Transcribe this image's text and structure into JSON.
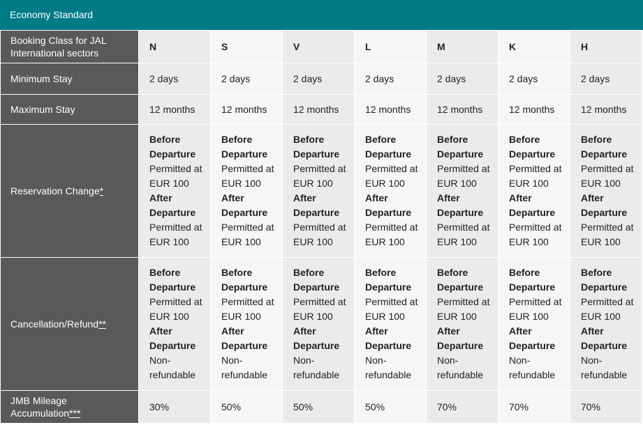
{
  "header": {
    "title": "Economy Standard"
  },
  "table": {
    "rows": [
      {
        "label": "Booking Class for JAL International sectors",
        "cells": [
          "N",
          "S",
          "V",
          "L",
          "M",
          "K",
          "H"
        ]
      },
      {
        "label": "Minimum Stay",
        "cells": [
          "2 days",
          "2 days",
          "2 days",
          "2 days",
          "2 days",
          "2 days",
          "2 days"
        ]
      },
      {
        "label": "Maximum Stay",
        "cells": [
          "12 months",
          "12 months",
          "12 months",
          "12 months",
          "12 months",
          "12 months",
          "12 months"
        ]
      },
      {
        "label": "Reservation Change",
        "note": "*",
        "cells": [
          {
            "before_label": "Before Departure",
            "before_value": "Permitted at EUR 100",
            "after_label": "After Departure",
            "after_value": "Permitted at EUR 100"
          },
          {
            "before_label": "Before Departure",
            "before_value": "Permitted at EUR 100",
            "after_label": "After Departure",
            "after_value": "Permitted at EUR 100"
          },
          {
            "before_label": "Before Departure",
            "before_value": "Permitted at EUR 100",
            "after_label": "After Departure",
            "after_value": "Permitted at EUR 100"
          },
          {
            "before_label": "Before Departure",
            "before_value": "Permitted at EUR 100",
            "after_label": "After Departure",
            "after_value": "Permitted at EUR 100"
          },
          {
            "before_label": "Before Departure",
            "before_value": "Permitted at EUR 100",
            "after_label": "After Departure",
            "after_value": "Permitted at EUR 100"
          },
          {
            "before_label": "Before Departure",
            "before_value": "Permitted at EUR 100",
            "after_label": "After Departure",
            "after_value": "Permitted at EUR 100"
          },
          {
            "before_label": "Before Departure",
            "before_value": "Permitted at EUR 100",
            "after_label": "After Departure",
            "after_value": "Permitted at EUR 100"
          }
        ]
      },
      {
        "label": "Cancellation/Refund",
        "note": "**",
        "cells": [
          {
            "before_label": "Before Departure",
            "before_value": "Permitted at EUR 100",
            "after_label": "After Departure",
            "after_value": "Non-refundable"
          },
          {
            "before_label": "Before Departure",
            "before_value": "Permitted at EUR 100",
            "after_label": "After Departure",
            "after_value": "Non-refundable"
          },
          {
            "before_label": "Before Departure",
            "before_value": "Permitted at EUR 100",
            "after_label": "After Departure",
            "after_value": "Non-refundable"
          },
          {
            "before_label": "Before Departure",
            "before_value": "Permitted at EUR 100",
            "after_label": "After Departure",
            "after_value": "Non-refundable"
          },
          {
            "before_label": "Before Departure",
            "before_value": "Permitted at EUR 100",
            "after_label": "After Departure",
            "after_value": "Non-refundable"
          },
          {
            "before_label": "Before Departure",
            "before_value": "Permitted at EUR 100",
            "after_label": "After Departure",
            "after_value": "Non-refundable"
          },
          {
            "before_label": "Before Departure",
            "before_value": "Permitted at EUR 100",
            "after_label": "After Departure",
            "after_value": "Non-refundable"
          }
        ]
      },
      {
        "label": "JMB Mileage Accumulation",
        "note": "***",
        "cells": [
          "30%",
          "50%",
          "50%",
          "50%",
          "70%",
          "70%",
          "70%"
        ]
      }
    ]
  }
}
